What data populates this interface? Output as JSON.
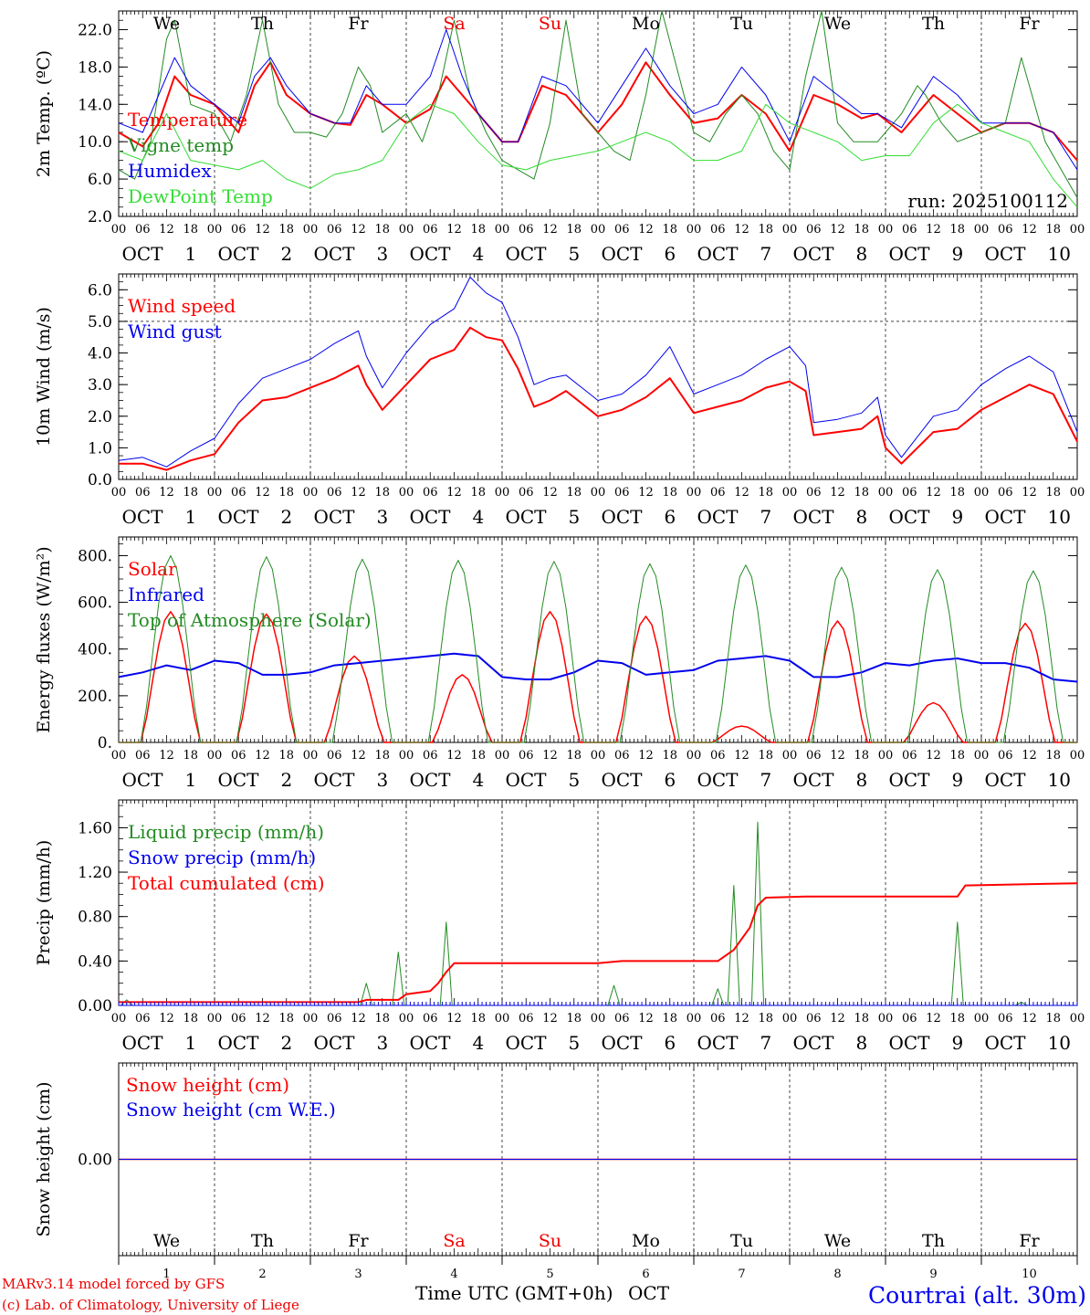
{
  "run_label": "run: 2025100112",
  "footer": {
    "model": "MARv3.14 model forced by GFS",
    "credit": "(c) Lab. of Climatology, University of Liege",
    "time_label": "Time UTC (GMT+0h)",
    "month_label": "OCT",
    "location": "Courtrai (alt. 30m)"
  },
  "time_axis": {
    "days": [
      "1",
      "2",
      "3",
      "4",
      "5",
      "6",
      "7",
      "8",
      "9",
      "10"
    ],
    "day_prefix": "OCT",
    "hour_ticks": [
      "00",
      "06",
      "12",
      "18"
    ],
    "weekdays": [
      "We",
      "Th",
      "Fr",
      "Sa",
      "Su",
      "Mo",
      "Tu",
      "We",
      "Th",
      "Fr"
    ],
    "weekend_color": "#ee0000"
  },
  "chart_data": [
    {
      "type": "line",
      "ylabel": "2m Temp. (ºC)",
      "ylim": [
        2,
        24
      ],
      "yticks": [
        "2.0",
        "6.0",
        "10.0",
        "14.0",
        "18.0",
        "22.0"
      ],
      "x_unit": "hours since Oct 1 00 UTC",
      "series": [
        {
          "name": "Temperature",
          "color": "#ff0000",
          "width": 2,
          "x": [
            0,
            6,
            10,
            14,
            18,
            24,
            30,
            34,
            38,
            42,
            48,
            54,
            58,
            62,
            66,
            72,
            78,
            82,
            86,
            90,
            96,
            100,
            106,
            112,
            120,
            126,
            132,
            138,
            144,
            150,
            156,
            162,
            168,
            174,
            180,
            186,
            190,
            196,
            204,
            210,
            216,
            222,
            228,
            234,
            240
          ],
          "y": [
            11,
            9.5,
            12,
            17,
            15,
            14,
            11,
            16,
            18.5,
            15,
            13,
            12,
            11.8,
            15,
            14,
            12,
            13.5,
            17,
            15,
            13,
            10,
            10,
            16,
            15,
            11,
            14,
            18.5,
            15,
            12,
            12.5,
            15,
            13,
            9,
            15,
            14,
            12.5,
            13,
            11,
            15,
            13,
            11,
            12,
            12,
            11,
            8
          ]
        },
        {
          "name": "Vigne temp",
          "color": "#228b22",
          "width": 1,
          "x": [
            0,
            4,
            8,
            12,
            14,
            18,
            24,
            28,
            32,
            36,
            40,
            44,
            48,
            52,
            56,
            60,
            63,
            66,
            72,
            76,
            80,
            84,
            88,
            92,
            96,
            100,
            104,
            108,
            112,
            116,
            120,
            124,
            128,
            132,
            136,
            144,
            148,
            152,
            156,
            158,
            160,
            164,
            168,
            172,
            176,
            180,
            184,
            190,
            196,
            200,
            202,
            206,
            210,
            216,
            222,
            226,
            232,
            236,
            240
          ],
          "y": [
            7,
            6,
            10,
            21,
            23,
            14,
            13,
            10,
            15,
            23,
            14,
            11,
            11,
            10.5,
            13,
            18,
            16,
            11,
            13,
            10,
            15,
            23,
            15,
            11,
            8,
            7,
            6,
            12,
            23,
            13,
            11,
            9,
            8,
            15,
            24,
            11,
            10,
            13,
            15,
            14,
            13,
            9,
            7,
            17,
            24,
            12,
            10,
            10,
            13,
            16,
            15,
            12,
            10,
            11,
            12,
            19,
            10,
            7,
            4
          ]
        },
        {
          "name": "Humidex",
          "color": "#0000ee",
          "width": 1,
          "x": [
            0,
            6,
            10,
            14,
            18,
            24,
            30,
            34,
            38,
            42,
            48,
            54,
            58,
            62,
            66,
            72,
            78,
            82,
            86,
            90,
            96,
            100,
            106,
            112,
            120,
            126,
            132,
            138,
            144,
            150,
            156,
            162,
            168,
            174,
            180,
            186,
            190,
            196,
            204,
            210,
            216,
            222,
            228,
            234,
            240
          ],
          "y": [
            12,
            11,
            15,
            19,
            16,
            14,
            12,
            17,
            19,
            16,
            13,
            12,
            12,
            16,
            14,
            14,
            17,
            22,
            17,
            13,
            10,
            10,
            17,
            16,
            12,
            16,
            20,
            16,
            13,
            14,
            18,
            15,
            10,
            17,
            15,
            13,
            13,
            11.5,
            17,
            15,
            12,
            12,
            12,
            11,
            7
          ]
        },
        {
          "name": "DewPoint Temp",
          "color": "#33dd33",
          "width": 1,
          "x": [
            0,
            6,
            12,
            18,
            24,
            30,
            36,
            42,
            48,
            54,
            60,
            66,
            72,
            78,
            84,
            90,
            96,
            102,
            108,
            114,
            120,
            126,
            132,
            138,
            144,
            150,
            156,
            162,
            168,
            174,
            180,
            186,
            192,
            198,
            204,
            210,
            216,
            222,
            228,
            234,
            240
          ],
          "y": [
            9,
            8,
            13,
            8,
            7.5,
            7,
            8,
            6,
            5,
            6.5,
            7,
            8,
            12,
            14,
            13,
            10,
            7.5,
            7,
            8,
            8.5,
            9,
            10,
            11,
            10,
            8,
            8,
            9,
            14,
            12,
            11,
            10,
            8,
            8.5,
            8.5,
            12,
            14,
            12,
            11,
            10,
            6,
            3
          ]
        }
      ]
    },
    {
      "type": "line",
      "ylabel": "10m Wind (m/s)",
      "ylim": [
        0,
        6.5
      ],
      "yticks": [
        "0.0",
        "1.0",
        "2.0",
        "3.0",
        "4.0",
        "5.0",
        "6.0"
      ],
      "reference_line": 5,
      "series": [
        {
          "name": "Wind speed",
          "color": "#ff0000",
          "width": 2,
          "x": [
            0,
            6,
            12,
            18,
            24,
            30,
            36,
            42,
            48,
            54,
            60,
            62,
            66,
            72,
            78,
            84,
            88,
            92,
            96,
            100,
            104,
            108,
            112,
            120,
            126,
            132,
            138,
            144,
            150,
            156,
            162,
            168,
            172,
            174,
            180,
            186,
            190,
            192,
            196,
            204,
            210,
            216,
            222,
            228,
            234,
            240
          ],
          "y": [
            0.5,
            0.5,
            0.3,
            0.6,
            0.8,
            1.8,
            2.5,
            2.6,
            2.9,
            3.2,
            3.6,
            3.0,
            2.2,
            3.0,
            3.8,
            4.1,
            4.8,
            4.5,
            4.4,
            3.5,
            2.3,
            2.5,
            2.8,
            2.0,
            2.2,
            2.6,
            3.2,
            2.1,
            2.3,
            2.5,
            2.9,
            3.1,
            2.8,
            1.4,
            1.5,
            1.6,
            2.0,
            1.0,
            0.5,
            1.5,
            1.6,
            2.2,
            2.6,
            3.0,
            2.7,
            1.2
          ]
        },
        {
          "name": "Wind gust",
          "color": "#0000ee",
          "width": 1,
          "x": [
            0,
            6,
            12,
            18,
            24,
            30,
            36,
            42,
            48,
            54,
            60,
            62,
            66,
            72,
            78,
            84,
            88,
            92,
            96,
            100,
            104,
            108,
            112,
            120,
            126,
            132,
            138,
            144,
            150,
            156,
            162,
            168,
            172,
            174,
            180,
            186,
            190,
            192,
            196,
            204,
            210,
            216,
            222,
            228,
            234,
            240
          ],
          "y": [
            0.6,
            0.7,
            0.4,
            0.9,
            1.3,
            2.4,
            3.2,
            3.5,
            3.8,
            4.3,
            4.7,
            3.9,
            2.9,
            4.0,
            4.9,
            5.4,
            6.4,
            5.9,
            5.6,
            4.5,
            3.0,
            3.2,
            3.3,
            2.5,
            2.7,
            3.3,
            4.2,
            2.7,
            3.0,
            3.3,
            3.8,
            4.2,
            3.6,
            1.8,
            1.9,
            2.1,
            2.6,
            1.4,
            0.7,
            2.0,
            2.2,
            3.0,
            3.5,
            3.9,
            3.4,
            1.5
          ]
        }
      ]
    },
    {
      "type": "line",
      "ylabel": "Energy fluxes (W/m²)",
      "ylim": [
        0,
        880
      ],
      "yticks": [
        "0.",
        "200.",
        "400.",
        "600.",
        "800."
      ],
      "series": [
        {
          "name": "Solar",
          "color": "#ff0000",
          "width": 1.5,
          "peaks": [
            [
              13,
              560
            ],
            [
              37,
              550
            ],
            [
              59,
              370
            ],
            [
              86,
              290
            ],
            [
              108,
              560
            ],
            [
              132,
              540
            ],
            [
              156,
              70
            ],
            [
              180,
              520
            ],
            [
              204,
              170
            ],
            [
              227,
              510
            ]
          ]
        },
        {
          "name": "Infrared",
          "color": "#0000ee",
          "width": 2,
          "x": [
            0,
            6,
            12,
            18,
            24,
            30,
            36,
            42,
            48,
            54,
            60,
            66,
            72,
            78,
            84,
            90,
            96,
            102,
            108,
            114,
            120,
            126,
            132,
            138,
            144,
            150,
            156,
            162,
            168,
            174,
            180,
            186,
            192,
            198,
            204,
            210,
            216,
            222,
            228,
            234,
            240
          ],
          "y": [
            280,
            300,
            330,
            310,
            350,
            340,
            290,
            290,
            300,
            330,
            340,
            350,
            360,
            370,
            380,
            370,
            280,
            270,
            270,
            300,
            350,
            340,
            290,
            300,
            310,
            350,
            360,
            370,
            350,
            280,
            280,
            300,
            340,
            330,
            350,
            360,
            340,
            340,
            320,
            270,
            260
          ]
        },
        {
          "name": "Top of Atmosphere (Solar)",
          "color": "#228b22",
          "width": 1,
          "peaks": [
            [
              13,
              800
            ],
            [
              37,
              795
            ],
            [
              61,
              785
            ],
            [
              85,
              780
            ],
            [
              109,
              775
            ],
            [
              133,
              765
            ],
            [
              157,
              760
            ],
            [
              181,
              750
            ],
            [
              205,
              740
            ],
            [
              229,
              735
            ]
          ]
        }
      ]
    },
    {
      "type": "line",
      "ylabel": "Precip (mm/h)",
      "ylim": [
        0,
        1.85
      ],
      "yticks": [
        "0.00",
        "0.40",
        "0.80",
        "1.20",
        "1.60"
      ],
      "series": [
        {
          "name": "Liquid precip (mm/h)",
          "color": "#228b22",
          "width": 1,
          "spikes": [
            [
              2,
              0.05
            ],
            [
              62,
              0.2
            ],
            [
              70,
              0.48
            ],
            [
              82,
              0.75
            ],
            [
              124,
              0.18
            ],
            [
              150,
              0.15
            ],
            [
              154,
              1.08
            ],
            [
              160,
              1.65
            ],
            [
              210,
              0.75
            ],
            [
              226,
              0.03
            ]
          ]
        },
        {
          "name": "Snow precip (mm/h)",
          "color": "#0000ee",
          "width": 1,
          "x": [
            0,
            240
          ],
          "y": [
            0,
            0
          ]
        },
        {
          "name": "Total cumulated (cm)",
          "color": "#ff0000",
          "width": 2,
          "x": [
            0,
            60,
            62,
            70,
            72,
            78,
            80,
            82,
            84,
            110,
            120,
            126,
            140,
            150,
            154,
            158,
            160,
            162,
            172,
            200,
            210,
            212,
            240
          ],
          "y": [
            0.03,
            0.03,
            0.05,
            0.05,
            0.1,
            0.13,
            0.2,
            0.3,
            0.38,
            0.38,
            0.38,
            0.4,
            0.4,
            0.4,
            0.5,
            0.7,
            0.9,
            0.97,
            0.98,
            0.98,
            0.98,
            1.08,
            1.1
          ]
        }
      ]
    },
    {
      "type": "line",
      "ylabel": "Snow height (cm)",
      "ylim": [
        -1,
        1
      ],
      "yticks": [
        "0.00"
      ],
      "series": [
        {
          "name": "Snow height (cm)",
          "color": "#ff0000",
          "width": 1.5,
          "x": [
            0,
            240
          ],
          "y": [
            0,
            0
          ]
        },
        {
          "name": "Snow height (cm W.E.)",
          "color": "#0000ee",
          "width": 1,
          "x": [
            0,
            240
          ],
          "y": [
            0,
            0
          ]
        }
      ]
    }
  ]
}
